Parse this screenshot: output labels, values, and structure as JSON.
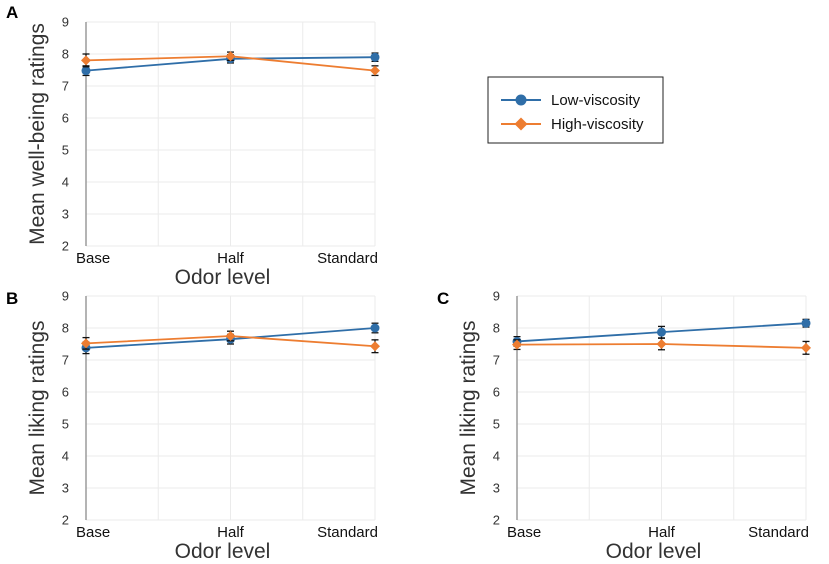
{
  "chart_data": [
    {
      "type": "line",
      "panel_label": "A",
      "categories": [
        "Base",
        "Half",
        "Standard"
      ],
      "xlabel": "Odor level",
      "ylabel": "Mean well-being ratings",
      "ylim": [
        2,
        9
      ],
      "yticks": [
        2,
        3,
        4,
        5,
        6,
        7,
        8,
        9
      ],
      "grid": true,
      "series": [
        {
          "name": "Low-viscosity",
          "values": [
            7.48,
            7.85,
            7.9
          ],
          "errors": [
            0.15,
            0.13,
            0.13
          ]
        },
        {
          "name": "High-viscosity",
          "values": [
            7.8,
            7.93,
            7.48
          ],
          "errors": [
            0.2,
            0.13,
            0.15
          ]
        }
      ]
    },
    {
      "type": "line",
      "panel_label": "B",
      "categories": [
        "Base",
        "Half",
        "Standard"
      ],
      "xlabel": "Odor level",
      "ylabel": "Mean liking ratings",
      "ylim": [
        2,
        9
      ],
      "yticks": [
        2,
        3,
        4,
        5,
        6,
        7,
        8,
        9
      ],
      "grid": true,
      "series": [
        {
          "name": "Low-viscosity",
          "values": [
            7.38,
            7.65,
            8.0
          ],
          "errors": [
            0.18,
            0.15,
            0.15
          ]
        },
        {
          "name": "High-viscosity",
          "values": [
            7.52,
            7.75,
            7.43
          ],
          "errors": [
            0.18,
            0.15,
            0.2
          ]
        }
      ]
    },
    {
      "type": "line",
      "panel_label": "C",
      "categories": [
        "Base",
        "Half",
        "Standard"
      ],
      "xlabel": "Odor level",
      "ylabel": "Mean liking ratings",
      "ylim": [
        2,
        9
      ],
      "yticks": [
        2,
        3,
        4,
        5,
        6,
        7,
        8,
        9
      ],
      "grid": true,
      "series": [
        {
          "name": "Low-viscosity",
          "values": [
            7.58,
            7.87,
            8.15
          ],
          "errors": [
            0.15,
            0.18,
            0.12
          ]
        },
        {
          "name": "High-viscosity",
          "values": [
            7.48,
            7.5,
            7.38
          ],
          "errors": [
            0.15,
            0.18,
            0.2
          ]
        }
      ]
    }
  ],
  "legend": {
    "entries": [
      {
        "name": "Low-viscosity",
        "marker": "circle",
        "color": "#2f6ea8"
      },
      {
        "name": "High-viscosity",
        "marker": "diamond",
        "color": "#ed7d31"
      }
    ]
  },
  "colors": {
    "low_viscosity": "#2f6ea8",
    "high_viscosity": "#ed7d31",
    "error_bar": "#111111"
  }
}
